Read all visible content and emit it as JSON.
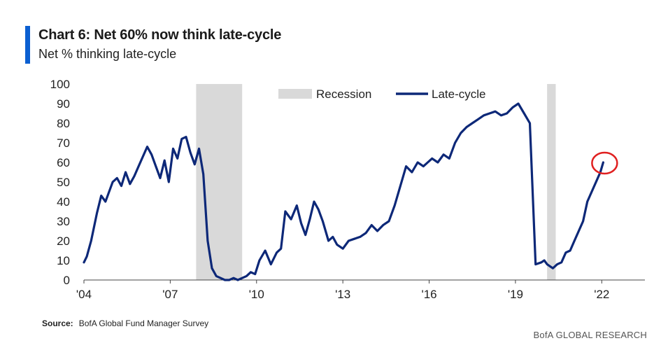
{
  "title": "Chart 6: Net 60% now think late-cycle",
  "subtitle": "Net % thinking late-cycle",
  "source_label": "Source:",
  "source_text": "BofA Global Fund Manager Survey",
  "footer": "BofA GLOBAL RESEARCH",
  "colors": {
    "line": "#0d2878",
    "recession": "#d9d9d9",
    "highlight": "#e02020",
    "title_bar": "#0b5fd1"
  },
  "chart_data": {
    "type": "line",
    "title": "Chart 6: Net 60% now think late-cycle",
    "ylabel": "Net % thinking late-cycle",
    "xlim": [
      2004.0,
      2023.5
    ],
    "ylim": [
      0,
      100
    ],
    "yticks": [
      0,
      10,
      20,
      30,
      40,
      50,
      60,
      70,
      80,
      90,
      100
    ],
    "xticks": [
      {
        "x": 2004,
        "label": "'04"
      },
      {
        "x": 2007,
        "label": "'07"
      },
      {
        "x": 2010,
        "label": "'10"
      },
      {
        "x": 2013,
        "label": "'13"
      },
      {
        "x": 2016,
        "label": "'16"
      },
      {
        "x": 2019,
        "label": "'19"
      },
      {
        "x": 2022,
        "label": "'22"
      }
    ],
    "legend": [
      "Recession",
      "Late-cycle"
    ],
    "legend_position": "top-center",
    "grid": false,
    "recessions": [
      [
        2007.9,
        2009.5
      ],
      [
        2020.1,
        2020.4
      ]
    ],
    "highlight_point": {
      "x": 2022.05,
      "y": 60
    },
    "series": [
      {
        "name": "Late-cycle",
        "x": [
          2004.0,
          2004.1,
          2004.25,
          2004.45,
          2004.6,
          2004.75,
          2005.0,
          2005.15,
          2005.3,
          2005.45,
          2005.6,
          2005.75,
          2005.9,
          2006.05,
          2006.2,
          2006.35,
          2006.5,
          2006.65,
          2006.8,
          2006.95,
          2007.1,
          2007.25,
          2007.4,
          2007.55,
          2007.7,
          2007.85,
          2008.0,
          2008.15,
          2008.3,
          2008.45,
          2008.6,
          2008.75,
          2008.9,
          2009.05,
          2009.2,
          2009.35,
          2009.5,
          2009.65,
          2009.8,
          2009.95,
          2010.1,
          2010.3,
          2010.5,
          2010.7,
          2010.85,
          2011.0,
          2011.2,
          2011.4,
          2011.55,
          2011.7,
          2011.85,
          2012.0,
          2012.15,
          2012.3,
          2012.5,
          2012.65,
          2012.8,
          2013.0,
          2013.2,
          2013.4,
          2013.6,
          2013.8,
          2014.0,
          2014.2,
          2014.4,
          2014.6,
          2014.8,
          2015.0,
          2015.2,
          2015.4,
          2015.6,
          2015.8,
          2015.95,
          2016.1,
          2016.3,
          2016.5,
          2016.7,
          2016.9,
          2017.1,
          2017.3,
          2017.5,
          2017.7,
          2017.9,
          2018.1,
          2018.3,
          2018.5,
          2018.7,
          2018.9,
          2019.1,
          2019.3,
          2019.5,
          2019.7,
          2019.9,
          2020.0,
          2020.1,
          2020.2,
          2020.3,
          2020.45,
          2020.6,
          2020.75,
          2020.9,
          2021.05,
          2021.2,
          2021.35,
          2021.5,
          2021.65,
          2021.8,
          2021.95,
          2022.05
        ],
        "values": [
          9,
          12,
          20,
          34,
          43,
          40,
          50,
          52,
          48,
          55,
          49,
          53,
          58,
          63,
          68,
          64,
          58,
          52,
          61,
          50,
          67,
          62,
          72,
          73,
          65,
          59,
          67,
          54,
          20,
          6,
          2,
          1,
          0,
          0,
          1,
          0,
          1,
          2,
          4,
          3,
          10,
          15,
          8,
          14,
          16,
          35,
          31,
          38,
          29,
          23,
          31,
          40,
          36,
          30,
          20,
          22,
          18,
          16,
          20,
          21,
          22,
          24,
          28,
          25,
          28,
          30,
          38,
          48,
          58,
          55,
          60,
          58,
          60,
          62,
          60,
          64,
          62,
          70,
          75,
          78,
          80,
          82,
          84,
          85,
          86,
          84,
          85,
          88,
          90,
          85,
          80,
          8,
          9,
          10,
          8,
          7,
          6,
          8,
          9,
          14,
          15,
          20,
          25,
          30,
          40,
          45,
          50,
          55,
          60
        ]
      }
    ]
  }
}
